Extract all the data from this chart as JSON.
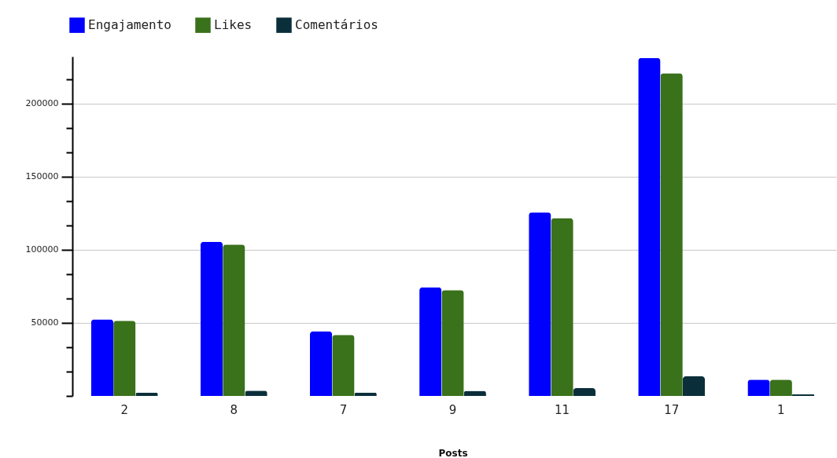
{
  "chart_data": {
    "type": "bar",
    "xlabel": "Posts",
    "categories": [
      "2",
      "8",
      "7",
      "9",
      "11",
      "17",
      "1"
    ],
    "series": [
      {
        "name": "Engajamento",
        "color": "#0000ff",
        "values": [
          52400,
          105400,
          44100,
          74300,
          125500,
          231000,
          11200
        ]
      },
      {
        "name": "Likes",
        "color": "#3a711b",
        "values": [
          51400,
          103500,
          41700,
          72400,
          121500,
          220600,
          11200
        ]
      },
      {
        "name": "Comentários",
        "color": "#0b2f3a",
        "values": [
          2300,
          3600,
          2300,
          3500,
          5400,
          13400,
          1100
        ]
      }
    ],
    "ylim": [
      0,
      232000
    ],
    "yticks": [
      {
        "value": 0,
        "label": null
      },
      {
        "value": 16667,
        "label": null
      },
      {
        "value": 33333,
        "label": null
      },
      50000,
      {
        "value": 66667,
        "label": null
      },
      {
        "value": 83333,
        "label": null
      },
      100000,
      {
        "value": 116667,
        "label": null
      },
      {
        "value": 133333,
        "label": null
      },
      150000,
      {
        "value": 166667,
        "label": null
      },
      {
        "value": 183333,
        "label": null
      },
      200000,
      {
        "value": 216667,
        "label": null
      }
    ],
    "grid": "y",
    "legend": "top"
  }
}
